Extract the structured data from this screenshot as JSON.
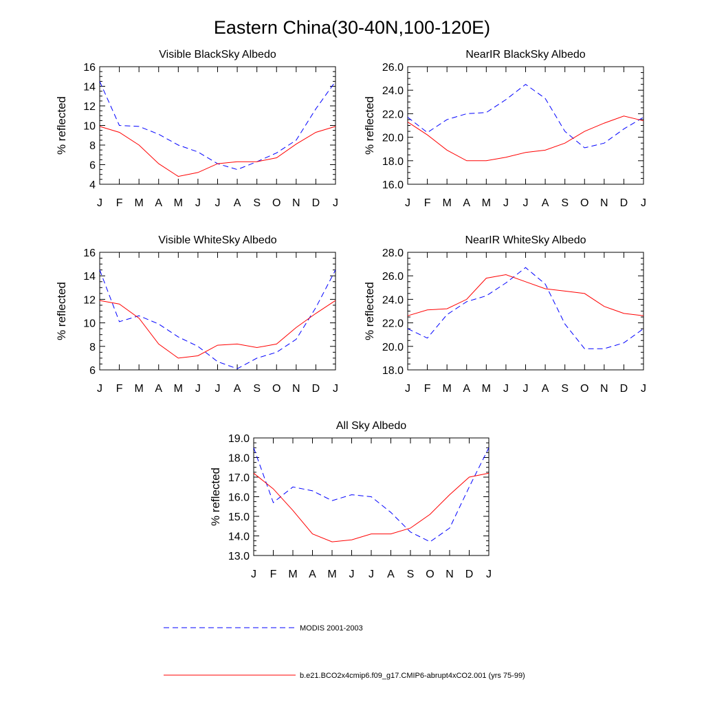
{
  "figure": {
    "title": "Eastern China(30-40N,100-120E)"
  },
  "legend": {
    "entries": [
      {
        "label": "MODIS 2001-2003",
        "color": "#0000ff",
        "style": "dashed"
      },
      {
        "label": "b.e21.BCO2x4cmip6.f09_g17.CMIP6-abrupt4xCO2.001 (yrs 75-99)",
        "color": "#ff0000",
        "style": "solid"
      }
    ]
  },
  "chart_data": [
    {
      "type": "line",
      "title": "Visible BlackSky Albedo",
      "xlabel": "",
      "ylabel": "% reflected",
      "categories": [
        "J",
        "F",
        "M",
        "A",
        "M",
        "J",
        "J",
        "A",
        "S",
        "O",
        "N",
        "D",
        "J"
      ],
      "ylim": [
        4,
        16
      ],
      "yticks": [
        "4",
        "6",
        "8",
        "10",
        "12",
        "14",
        "16"
      ],
      "series": [
        {
          "name": "MODIS 2001-2003",
          "values": [
            14.5,
            10.0,
            9.9,
            9.1,
            8.0,
            7.3,
            6.1,
            5.5,
            6.3,
            7.2,
            8.5,
            11.7,
            14.5
          ]
        },
        {
          "name": "b.e21.BCO2x4cmip6.f09_g17.CMIP6-abrupt4xCO2.001 (yrs 75-99)",
          "values": [
            9.9,
            9.3,
            8.0,
            6.1,
            4.8,
            5.2,
            6.1,
            6.3,
            6.3,
            6.7,
            8.1,
            9.3,
            9.9
          ]
        }
      ]
    },
    {
      "type": "line",
      "title": "NearIR BlackSky Albedo",
      "xlabel": "",
      "ylabel": "% reflected",
      "categories": [
        "J",
        "F",
        "M",
        "A",
        "M",
        "J",
        "J",
        "A",
        "S",
        "O",
        "N",
        "D",
        "J"
      ],
      "ylim": [
        16,
        26
      ],
      "yticks": [
        "16.0",
        "18.0",
        "20.0",
        "22.0",
        "24.0",
        "26.0"
      ],
      "series": [
        {
          "name": "MODIS 2001-2003",
          "values": [
            21.7,
            20.4,
            21.5,
            22.0,
            22.1,
            23.2,
            24.5,
            23.3,
            20.5,
            19.1,
            19.5,
            20.7,
            21.7
          ]
        },
        {
          "name": "b.e21.BCO2x4cmip6.f09_g17.CMIP6-abrupt4xCO2.001 (yrs 75-99)",
          "values": [
            21.3,
            20.2,
            18.9,
            18.0,
            18.0,
            18.3,
            18.7,
            18.9,
            19.5,
            20.5,
            21.2,
            21.8,
            21.4
          ]
        }
      ]
    },
    {
      "type": "line",
      "title": "Visible WhiteSky Albedo",
      "xlabel": "",
      "ylabel": "% reflected",
      "categories": [
        "J",
        "F",
        "M",
        "A",
        "M",
        "J",
        "J",
        "A",
        "S",
        "O",
        "N",
        "D",
        "J"
      ],
      "ylim": [
        6,
        16
      ],
      "yticks": [
        "6",
        "8",
        "10",
        "12",
        "14",
        "16"
      ],
      "series": [
        {
          "name": "MODIS 2001-2003",
          "values": [
            14.5,
            10.1,
            10.6,
            9.9,
            8.8,
            8.0,
            6.7,
            6.1,
            7.0,
            7.5,
            8.6,
            11.3,
            14.5
          ]
        },
        {
          "name": "b.e21.BCO2x4cmip6.f09_g17.CMIP6-abrupt4xCO2.001 (yrs 75-99)",
          "values": [
            11.9,
            11.6,
            10.4,
            8.2,
            7.0,
            7.2,
            8.1,
            8.2,
            7.9,
            8.2,
            9.6,
            10.8,
            11.9
          ]
        }
      ]
    },
    {
      "type": "line",
      "title": "NearIR WhiteSky Albedo",
      "xlabel": "",
      "ylabel": "% reflected",
      "categories": [
        "J",
        "F",
        "M",
        "A",
        "M",
        "J",
        "J",
        "A",
        "S",
        "O",
        "N",
        "D",
        "J"
      ],
      "ylim": [
        18,
        28
      ],
      "yticks": [
        "18.0",
        "20.0",
        "22.0",
        "24.0",
        "26.0",
        "28.0"
      ],
      "series": [
        {
          "name": "MODIS 2001-2003",
          "values": [
            21.5,
            20.7,
            22.7,
            23.8,
            24.3,
            25.4,
            26.7,
            25.3,
            21.9,
            19.8,
            19.8,
            20.3,
            21.5
          ]
        },
        {
          "name": "b.e21.BCO2x4cmip6.f09_g17.CMIP6-abrupt4xCO2.001 (yrs 75-99)",
          "values": [
            22.6,
            23.1,
            23.2,
            24.0,
            25.8,
            26.1,
            25.5,
            24.9,
            24.7,
            24.5,
            23.4,
            22.8,
            22.6
          ]
        }
      ]
    },
    {
      "type": "line",
      "title": "All Sky Albedo",
      "xlabel": "",
      "ylabel": "% reflected",
      "categories": [
        "J",
        "F",
        "M",
        "A",
        "M",
        "J",
        "J",
        "A",
        "S",
        "O",
        "N",
        "D",
        "J"
      ],
      "ylim": [
        13,
        19
      ],
      "yticks": [
        "13.0",
        "14.0",
        "15.0",
        "16.0",
        "17.0",
        "18.0",
        "19.0"
      ],
      "series": [
        {
          "name": "MODIS 2001-2003",
          "values": [
            18.5,
            15.7,
            16.5,
            16.3,
            15.8,
            16.1,
            16.0,
            15.2,
            14.2,
            13.7,
            14.4,
            16.5,
            18.5
          ]
        },
        {
          "name": "b.e21.BCO2x4cmip6.f09_g17.CMIP6-abrupt4xCO2.001 (yrs 75-99)",
          "values": [
            17.2,
            16.4,
            15.3,
            14.1,
            13.7,
            13.8,
            14.1,
            14.1,
            14.4,
            15.1,
            16.1,
            17.0,
            17.2
          ]
        }
      ]
    }
  ]
}
